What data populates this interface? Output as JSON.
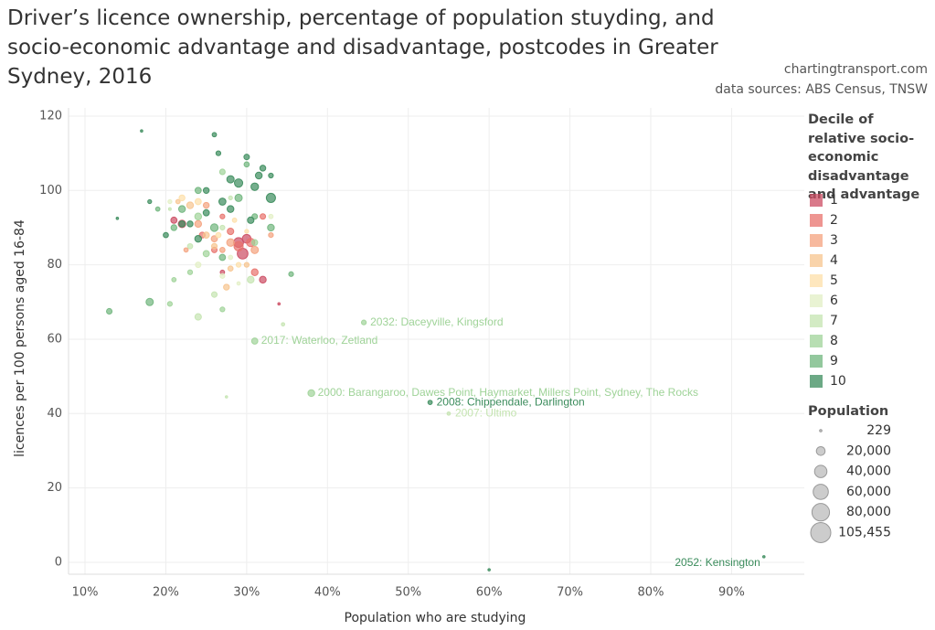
{
  "chart_data": {
    "type": "scatter",
    "title": "Driver’s licence ownership, percentage of population stuyding, and socio-economic advantage and disadvantage, postcodes in Greater Sydney, 2016",
    "source": "chartingtransport.com",
    "subtitle": "data sources: ABS Census, TNSW",
    "xlabel": "Population who are studying",
    "ylabel": "licences per 100 persons aged 16-84",
    "legend_title": "Decile of relative socio-economic disadvantage and advantage",
    "size_legend_title": "Population",
    "size_legend": [
      229,
      {
        "value": 20000,
        "label": "20,000"
      },
      {
        "value": 40000,
        "label": "40,000"
      },
      {
        "value": 60000,
        "label": "60,000"
      },
      {
        "value": 80000,
        "label": "80,000"
      },
      {
        "value": 105455,
        "label": "105,455"
      }
    ],
    "xlim": [
      7.96,
      99
    ],
    "ylim": [
      -3.2,
      122.2
    ],
    "xticks": [
      {
        "value": 10,
        "label": "10%"
      },
      {
        "value": 20,
        "label": "20%"
      },
      {
        "value": 30,
        "label": "30%"
      },
      {
        "value": 40,
        "label": "40%"
      },
      {
        "value": 50,
        "label": "50%"
      },
      {
        "value": 60,
        "label": "60%"
      },
      {
        "value": 70,
        "label": "70%"
      },
      {
        "value": 80,
        "label": "80%"
      },
      {
        "value": 90,
        "label": "90%"
      }
    ],
    "yticks": [
      0,
      20,
      40,
      60,
      80,
      100,
      120
    ],
    "grid": true,
    "legend": "right",
    "series": [
      {
        "name": "1",
        "color": "#cc4c63",
        "x": [
          29.5,
          29,
          22,
          27,
          30,
          32,
          34,
          21
        ],
        "y": [
          83,
          86,
          91,
          78,
          87,
          76,
          69.5,
          92
        ],
        "sizes": [
          30000,
          25000,
          15000,
          5000,
          20000,
          12000,
          1000,
          10000
        ],
        "labels": [
          null,
          null,
          null,
          null,
          null,
          null,
          null,
          null
        ]
      },
      {
        "name": "2",
        "color": "#e8726c",
        "x": [
          29,
          30.5,
          31,
          26,
          24.5,
          28,
          32,
          27
        ],
        "y": [
          85,
          86,
          78,
          84,
          88,
          89,
          93,
          93
        ],
        "sizes": [
          22000,
          18000,
          12000,
          8000,
          9000,
          11000,
          8000,
          6000
        ],
        "labels": [
          null,
          null,
          null,
          null,
          null,
          null,
          null,
          null
        ]
      },
      {
        "name": "3",
        "color": "#f4a27e",
        "x": [
          26,
          28,
          24,
          31,
          25,
          27,
          33,
          22.5
        ],
        "y": [
          87,
          86,
          91,
          84,
          96,
          84,
          88,
          84
        ],
        "sizes": [
          10000,
          15000,
          12000,
          14000,
          9000,
          7000,
          6000,
          5000
        ],
        "labels": [
          null,
          null,
          null,
          null,
          null,
          null,
          null,
          null
        ]
      },
      {
        "name": "4",
        "color": "#f7c48e",
        "x": [
          23,
          27.5,
          28,
          25,
          30,
          21.5,
          26
        ],
        "y": [
          96,
          74,
          79,
          88,
          80,
          97,
          85
        ],
        "sizes": [
          12000,
          9000,
          7000,
          10000,
          6000,
          5000,
          8000
        ],
        "labels": [
          null,
          null,
          null,
          null,
          null,
          null,
          null
        ]
      },
      {
        "name": "5",
        "color": "#fddfa8",
        "x": [
          22,
          24,
          26.5,
          29,
          28.5,
          30
        ],
        "y": [
          98,
          97,
          88,
          80,
          92,
          89
        ],
        "sizes": [
          9000,
          10000,
          7000,
          6000,
          5000,
          4000
        ],
        "labels": [
          null,
          null,
          null,
          null,
          null,
          null
        ]
      },
      {
        "name": "6",
        "color": "#e2efc4",
        "x": [
          27,
          24,
          33,
          20.5,
          28,
          29
        ],
        "y": [
          77,
          80,
          93,
          97,
          82,
          75
        ],
        "sizes": [
          6000,
          8000,
          5000,
          4000,
          5000,
          3000
        ],
        "labels": [
          null,
          null,
          null,
          null,
          null,
          null
        ]
      },
      {
        "name": "7",
        "color": "#c4e4b0",
        "x": [
          24,
          30.5,
          34.5,
          26,
          23,
          27,
          20.5,
          28,
          27.5,
          55
        ],
        "y": [
          66,
          76,
          64,
          72,
          85,
          90,
          95,
          98,
          44.5,
          40
        ],
        "sizes": [
          11000,
          12000,
          3000,
          8000,
          7000,
          6000,
          2000,
          4000,
          300,
          3000
        ],
        "labels": [
          null,
          null,
          null,
          null,
          null,
          null,
          null,
          null,
          null,
          "2007: Ultimo"
        ]
      },
      {
        "name": "8",
        "color": "#9fd398",
        "x": [
          44.5,
          31,
          38,
          20.5,
          27,
          31,
          25,
          24,
          27,
          23,
          21
        ],
        "y": [
          64.5,
          59.5,
          45.5,
          69.5,
          68,
          86,
          83,
          93,
          105,
          78,
          76
        ],
        "sizes": [
          6000,
          10000,
          12000,
          6000,
          6000,
          9000,
          10000,
          12000,
          8000,
          6000,
          5000
        ],
        "labels": [
          "2032: Daceyville, Kingsford",
          "2017: Waterloo, Zetland",
          "2000: Barangaroo, Dawes Point, Haymarket, Millers Point, Sydney, The Rocks",
          null,
          null,
          null,
          null,
          null,
          null,
          null,
          null
        ]
      },
      {
        "name": "9",
        "color": "#6fb57c",
        "x": [
          13,
          18,
          35.5,
          33,
          22,
          26,
          29,
          24,
          27,
          30,
          21,
          31,
          19
        ],
        "y": [
          67.5,
          70,
          77.5,
          90,
          95,
          90,
          98,
          100,
          82,
          107,
          90,
          93,
          95
        ],
        "sizes": [
          8000,
          14000,
          6000,
          12000,
          12000,
          15000,
          14000,
          10000,
          10000,
          7000,
          9000,
          8000,
          5000
        ],
        "labels": [
          null,
          null,
          null,
          null,
          null,
          null,
          null,
          null,
          null,
          null,
          null,
          null,
          null
        ]
      },
      {
        "name": "10",
        "color": "#3b8c5c",
        "x": [
          52.7,
          94,
          33,
          29,
          31,
          32,
          30,
          26,
          28,
          25,
          24,
          27,
          23,
          18,
          14,
          17,
          60,
          31.5,
          33,
          22,
          20,
          25,
          28,
          30.5,
          26.5
        ],
        "y": [
          43,
          1.5,
          98,
          102,
          101,
          106,
          109,
          115,
          103,
          94,
          87,
          97,
          91,
          97,
          92.5,
          116,
          -2,
          104,
          104,
          91,
          88,
          100,
          95,
          92,
          110
        ],
        "sizes": [
          5000,
          500,
          22000,
          18000,
          15000,
          9000,
          8000,
          5000,
          14000,
          10000,
          12000,
          13000,
          9000,
          4000,
          1500,
          800,
          400,
          12000,
          6000,
          10000,
          7000,
          9000,
          12000,
          11000,
          6000
        ],
        "labels": [
          "2008: Chippendale, Darlington",
          "2052: Kensington",
          null,
          null,
          null,
          null,
          null,
          null,
          null,
          null,
          null,
          null,
          null,
          null,
          null,
          null,
          null,
          null,
          null,
          null,
          null,
          null,
          null,
          null,
          null
        ]
      }
    ]
  }
}
